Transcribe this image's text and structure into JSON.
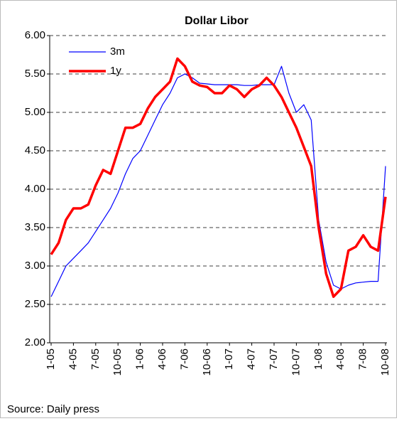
{
  "chart_data": {
    "type": "line",
    "title": "Dollar Libor",
    "source": "Source: Daily press",
    "categories": [
      "1-05",
      null,
      null,
      "4-05",
      null,
      null,
      "7-05",
      null,
      null,
      "10-05",
      null,
      null,
      "1-06",
      null,
      null,
      "4-06",
      null,
      null,
      "7-06",
      null,
      null,
      "10-06",
      null,
      null,
      "1-07",
      null,
      null,
      "4-07",
      null,
      null,
      "7-07",
      null,
      null,
      "10-07",
      null,
      null,
      "1-08",
      null,
      null,
      "4-08",
      null,
      null,
      "7-08",
      null,
      null,
      "10-08"
    ],
    "series": [
      {
        "name": "3m",
        "color": "#0000ff",
        "width": 1.2,
        "values": [
          2.6,
          2.8,
          3.0,
          3.1,
          3.2,
          3.3,
          3.45,
          3.6,
          3.75,
          3.95,
          4.2,
          4.4,
          4.5,
          4.7,
          4.9,
          5.1,
          5.25,
          5.45,
          5.5,
          5.45,
          5.38,
          5.37,
          5.36,
          5.36,
          5.36,
          5.36,
          5.35,
          5.35,
          5.36,
          5.36,
          5.36,
          5.6,
          5.25,
          5.0,
          5.1,
          4.9,
          3.6,
          3.05,
          2.75,
          2.7,
          2.75,
          2.78,
          2.79,
          2.8,
          2.8,
          4.3
        ]
      },
      {
        "name": "1y",
        "color": "#ff0000",
        "width": 3.5,
        "values": [
          3.15,
          3.3,
          3.6,
          3.75,
          3.75,
          3.8,
          4.05,
          4.25,
          4.2,
          4.5,
          4.8,
          4.8,
          4.85,
          5.05,
          5.2,
          5.3,
          5.4,
          5.7,
          5.6,
          5.4,
          5.35,
          5.33,
          5.25,
          5.25,
          5.35,
          5.3,
          5.2,
          5.3,
          5.35,
          5.45,
          5.35,
          5.2,
          5.0,
          4.8,
          4.55,
          4.3,
          3.5,
          2.9,
          2.6,
          2.7,
          3.2,
          3.25,
          3.4,
          3.25,
          3.2,
          3.9
        ]
      }
    ],
    "ylim": [
      2,
      6
    ],
    "yticks": [
      {
        "value": 2,
        "label": "2.00"
      },
      {
        "value": 2.5,
        "label": "2.50"
      },
      {
        "value": 3,
        "label": "3.00"
      },
      {
        "value": 3.5,
        "label": "3.50"
      },
      {
        "value": 4,
        "label": "4.00"
      },
      {
        "value": 4.5,
        "label": "4.50"
      },
      {
        "value": 5,
        "label": "5.00"
      },
      {
        "value": 5.5,
        "label": "5.50"
      },
      {
        "value": 6,
        "label": "6.00"
      }
    ],
    "grid": true,
    "legend": "top-left"
  }
}
